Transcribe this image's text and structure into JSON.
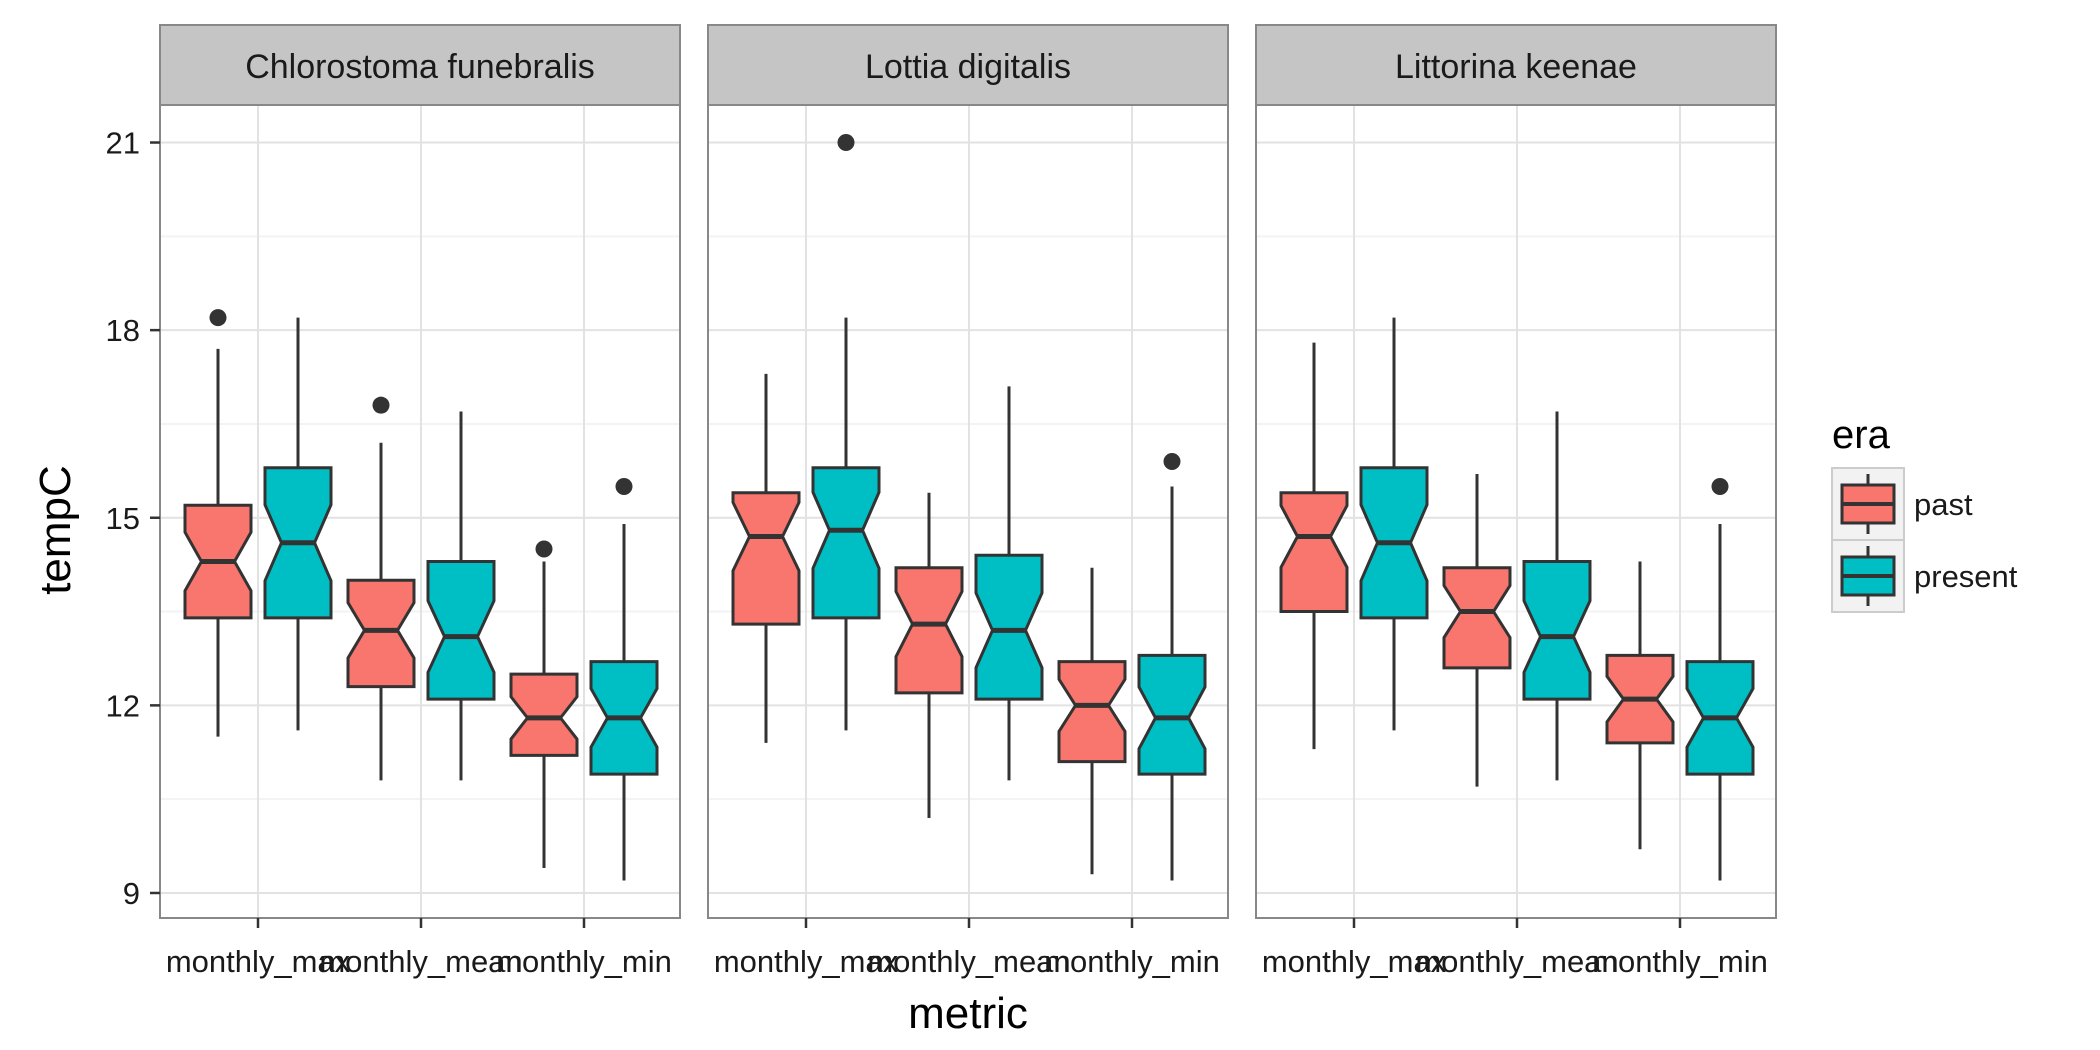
{
  "chart_data": {
    "type": "boxplot",
    "notched": true,
    "facets": [
      {
        "title": "Chlorostoma funebralis",
        "groups": [
          {
            "category": "monthly_max",
            "era": "past",
            "low": 11.5,
            "q1": 13.4,
            "median": 14.3,
            "q3": 15.2,
            "high": 17.7,
            "outliers": [
              18.2
            ]
          },
          {
            "category": "monthly_max",
            "era": "present",
            "low": 11.6,
            "q1": 13.4,
            "median": 14.6,
            "q3": 15.8,
            "high": 18.2,
            "outliers": []
          },
          {
            "category": "monthly_mean",
            "era": "past",
            "low": 10.8,
            "q1": 12.3,
            "median": 13.2,
            "q3": 14.0,
            "high": 16.2,
            "outliers": [
              16.8
            ]
          },
          {
            "category": "monthly_mean",
            "era": "present",
            "low": 10.8,
            "q1": 12.1,
            "median": 13.1,
            "q3": 14.3,
            "high": 16.7,
            "outliers": []
          },
          {
            "category": "monthly_min",
            "era": "past",
            "low": 9.4,
            "q1": 11.2,
            "median": 11.8,
            "q3": 12.5,
            "high": 14.3,
            "outliers": [
              14.5
            ]
          },
          {
            "category": "monthly_min",
            "era": "present",
            "low": 9.2,
            "q1": 10.9,
            "median": 11.8,
            "q3": 12.7,
            "high": 14.9,
            "outliers": [
              15.5
            ]
          }
        ]
      },
      {
        "title": "Lottia digitalis",
        "groups": [
          {
            "category": "monthly_max",
            "era": "past",
            "low": 11.4,
            "q1": 13.3,
            "median": 14.7,
            "q3": 15.4,
            "high": 17.3,
            "outliers": []
          },
          {
            "category": "monthly_max",
            "era": "present",
            "low": 11.6,
            "q1": 13.4,
            "median": 14.8,
            "q3": 15.8,
            "high": 18.2,
            "outliers": [
              21.0
            ]
          },
          {
            "category": "monthly_mean",
            "era": "past",
            "low": 10.2,
            "q1": 12.2,
            "median": 13.3,
            "q3": 14.2,
            "high": 15.4,
            "outliers": []
          },
          {
            "category": "monthly_mean",
            "era": "present",
            "low": 10.8,
            "q1": 12.1,
            "median": 13.2,
            "q3": 14.4,
            "high": 17.1,
            "outliers": []
          },
          {
            "category": "monthly_min",
            "era": "past",
            "low": 9.3,
            "q1": 11.1,
            "median": 12.0,
            "q3": 12.7,
            "high": 14.2,
            "outliers": []
          },
          {
            "category": "monthly_min",
            "era": "present",
            "low": 9.2,
            "q1": 10.9,
            "median": 11.8,
            "q3": 12.8,
            "high": 15.5,
            "outliers": [
              15.9
            ]
          }
        ]
      },
      {
        "title": "Littorina keenae",
        "groups": [
          {
            "category": "monthly_max",
            "era": "past",
            "low": 11.3,
            "q1": 13.5,
            "median": 14.7,
            "q3": 15.4,
            "high": 17.8,
            "outliers": []
          },
          {
            "category": "monthly_max",
            "era": "present",
            "low": 11.6,
            "q1": 13.4,
            "median": 14.6,
            "q3": 15.8,
            "high": 18.2,
            "outliers": []
          },
          {
            "category": "monthly_mean",
            "era": "past",
            "low": 10.7,
            "q1": 12.6,
            "median": 13.5,
            "q3": 14.2,
            "high": 15.7,
            "outliers": []
          },
          {
            "category": "monthly_mean",
            "era": "present",
            "low": 10.8,
            "q1": 12.1,
            "median": 13.1,
            "q3": 14.3,
            "high": 16.7,
            "outliers": []
          },
          {
            "category": "monthly_min",
            "era": "past",
            "low": 9.7,
            "q1": 11.4,
            "median": 12.1,
            "q3": 12.8,
            "high": 14.3,
            "outliers": []
          },
          {
            "category": "monthly_min",
            "era": "present",
            "low": 9.2,
            "q1": 10.9,
            "median": 11.8,
            "q3": 12.7,
            "high": 14.9,
            "outliers": [
              15.5
            ]
          }
        ]
      }
    ],
    "categories": [
      "monthly_max",
      "monthly_mean",
      "monthly_min"
    ],
    "xlabel": "metric",
    "ylabel": "tempC",
    "y_ticks": [
      9,
      12,
      15,
      18,
      21
    ],
    "ylim": [
      8.6,
      21.6
    ],
    "grid": true,
    "legend": {
      "title": "era",
      "placement": "right",
      "entries": [
        {
          "name": "past",
          "color": "#F8766D"
        },
        {
          "name": "present",
          "color": "#00BFC4"
        }
      ]
    }
  }
}
